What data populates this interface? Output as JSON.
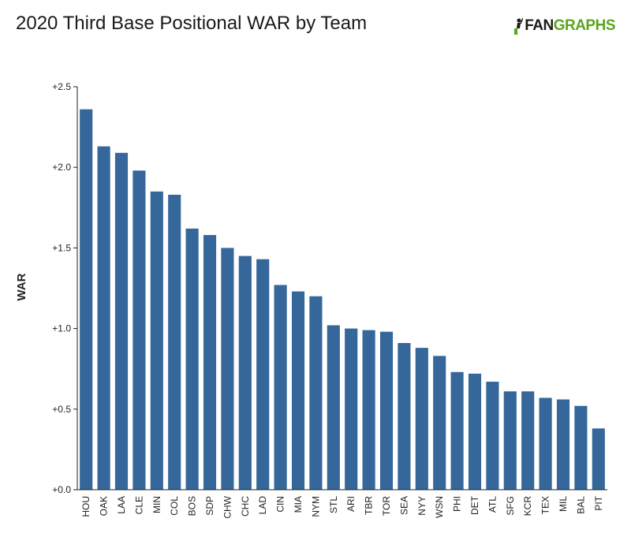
{
  "title": "2020 Third Base Positional WAR by Team",
  "logo": {
    "prefix": "FAN",
    "suffix": "GRAPHS"
  },
  "colors": {
    "bar": "#35679a",
    "axis": "#222222",
    "logo_green": "#5aa51d"
  },
  "chart_data": {
    "type": "bar",
    "title": "2020 Third Base Positional WAR by Team",
    "xlabel": "",
    "ylabel": "WAR",
    "ylim": [
      0,
      2.5
    ],
    "yticks": [
      0.0,
      0.5,
      1.0,
      1.5,
      2.0,
      2.5
    ],
    "ytick_labels": [
      "+0.0",
      "+0.5",
      "+1.0",
      "+1.5",
      "+2.0",
      "+2.5"
    ],
    "grid": false,
    "categories": [
      "HOU",
      "OAK",
      "LAA",
      "CLE",
      "MIN",
      "COL",
      "BOS",
      "SDP",
      "CHW",
      "CHC",
      "LAD",
      "CIN",
      "MIA",
      "NYM",
      "STL",
      "ARI",
      "TBR",
      "TOR",
      "SEA",
      "NYY",
      "WSN",
      "PHI",
      "DET",
      "ATL",
      "SFG",
      "KCR",
      "TEX",
      "MIL",
      "BAL",
      "PIT"
    ],
    "values": [
      2.36,
      2.13,
      2.09,
      1.98,
      1.85,
      1.83,
      1.62,
      1.58,
      1.5,
      1.45,
      1.43,
      1.27,
      1.23,
      1.2,
      1.02,
      1.0,
      0.99,
      0.98,
      0.91,
      0.88,
      0.83,
      0.73,
      0.72,
      0.67,
      0.61,
      0.61,
      0.57,
      0.56,
      0.52,
      0.38
    ]
  }
}
